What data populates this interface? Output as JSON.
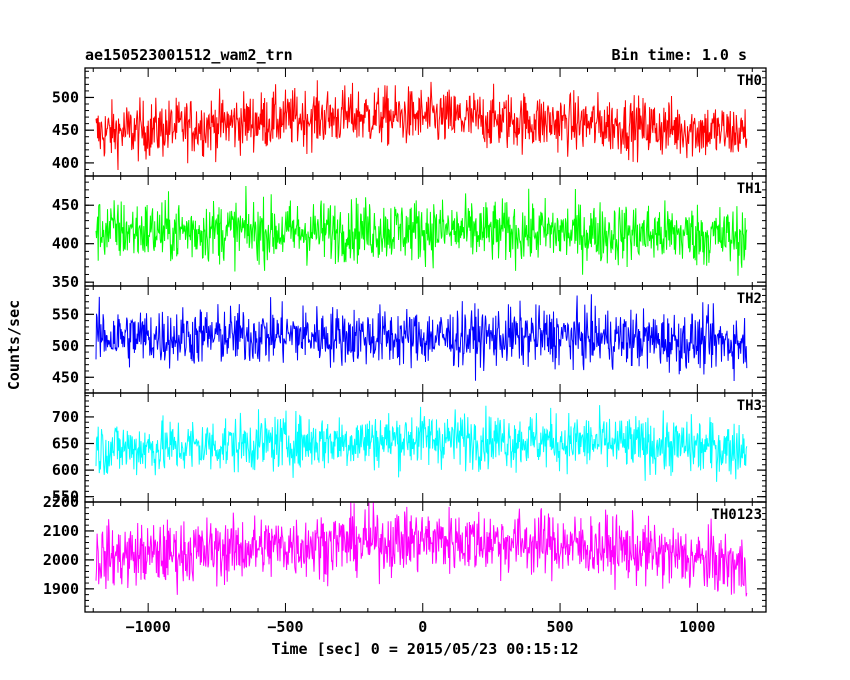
{
  "chart_data": {
    "type": "line",
    "title": "ae150523001512_wam2_trn",
    "subtitle": "Bin time: 1.0 s",
    "xlabel": "Time [sec] 0 = 2015/05/23 00:15:12",
    "ylabel": "Counts/sec",
    "xlim": [
      -1230,
      1250
    ],
    "x_range": [
      -1190,
      1180
    ],
    "bin_time_s": 1.0,
    "x_ticks": [
      -1000,
      -500,
      0,
      500,
      1000
    ],
    "grid": false,
    "legend": "panel labels top-right",
    "panels": [
      {
        "name": "TH0",
        "color": "#ff0000",
        "ylim": [
          380,
          545
        ],
        "y_ticks": [
          400,
          450,
          500
        ],
        "trend": [
          445,
          452,
          460,
          468,
          472,
          470,
          466,
          462,
          458,
          452,
          445
        ],
        "noise": 22
      },
      {
        "name": "TH1",
        "color": "#00ff00",
        "ylim": [
          345,
          488
        ],
        "y_ticks": [
          350,
          400,
          450
        ],
        "trend": [
          418,
          416,
          417,
          415,
          418,
          418,
          415,
          415,
          413,
          412,
          408
        ],
        "noise": 20
      },
      {
        "name": "TH2",
        "color": "#0000ff",
        "ylim": [
          425,
          595
        ],
        "y_ticks": [
          450,
          500,
          550
        ],
        "trend": [
          515,
          514,
          516,
          517,
          515,
          513,
          514,
          515,
          512,
          508,
          505
        ],
        "noise": 23
      },
      {
        "name": "TH3",
        "color": "#00ffff",
        "ylim": [
          540,
          745
        ],
        "y_ticks": [
          550,
          600,
          650,
          700
        ],
        "trend": [
          640,
          642,
          648,
          652,
          655,
          660,
          658,
          655,
          650,
          645,
          640
        ],
        "noise": 26
      },
      {
        "name": "TH0123",
        "color": "#ff00ff",
        "ylim": [
          1820,
          2200
        ],
        "y_ticks": [
          1900,
          2000,
          2100,
          2200
        ],
        "trend": [
          2010,
          2020,
          2035,
          2050,
          2062,
          2068,
          2065,
          2055,
          2040,
          2010,
          1975
        ],
        "noise": 55
      }
    ]
  }
}
